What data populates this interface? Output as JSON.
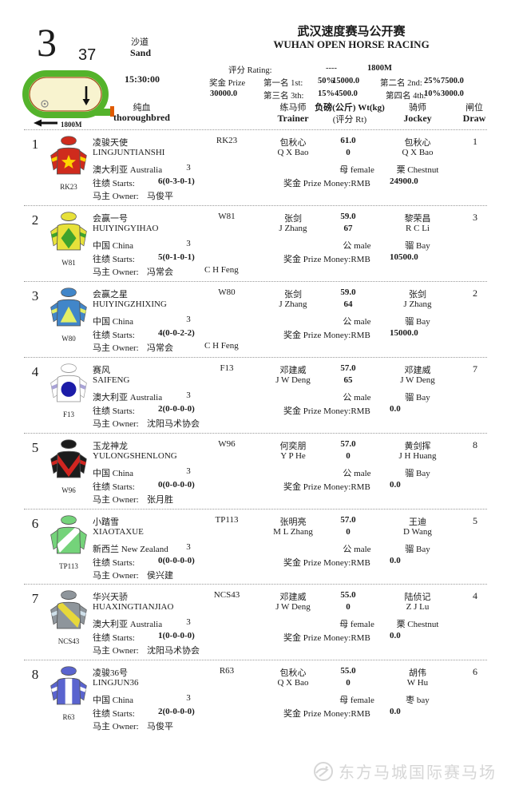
{
  "page": {
    "race_number": "3",
    "race_code": "37",
    "surface_cn": "沙道",
    "surface_en": "Sand",
    "post_time": "15:30:00",
    "breed_cn": "纯血",
    "breed_en": "thoroughbred",
    "title_cn": "武汉速度赛马公开赛",
    "title_en": "WUHAN OPEN HORSE RACING",
    "rating_label": "评分 Rating:",
    "rating_value": "----",
    "distance": "1800M",
    "track_distance": "1800M",
    "prize_label": "奖金 Prize",
    "prize_total": "30000.0",
    "prizes": [
      {
        "label": "第一名 1st:",
        "pct": "50%",
        "amount": "15000.0"
      },
      {
        "label": "第二名 2nd:",
        "pct": "25%",
        "amount": "7500.0"
      },
      {
        "label": "第三名 3th:",
        "pct": "15%",
        "amount": "4500.0"
      },
      {
        "label": "第四名 4th:",
        "pct": "10%",
        "amount": "3000.0"
      }
    ],
    "columns": {
      "trainer_cn": "练马师",
      "trainer_en": "Trainer",
      "wt_cn": "负磅(公斤) Wt(kg)",
      "wt_en": "(评分 Rt)",
      "jockey_cn": "骑师",
      "jockey_en": "Jockey",
      "draw_cn": "闸位",
      "draw_en": "Draw"
    },
    "row_labels": {
      "starts": "往绩 Starts:",
      "owner": "马主 Owner:",
      "prize": "奖金 Prize Money:RMB"
    },
    "footer": "东方马城国际赛马场",
    "colors": {
      "track_green": "#54b32b",
      "track_infield": "#f8f3cf",
      "track_rail": "#a2541f",
      "watermark_gray": "#d6d6d6"
    }
  },
  "horses": [
    {
      "num": "1",
      "code": "RK23",
      "name_cn": "凌骏天使",
      "name_en": "LINGJUNTIANSHI",
      "country": "澳大利亚 Australia",
      "age": "3",
      "starts": "6(0-3-0-1)",
      "owner_cn": "马俊平",
      "owner_en": "",
      "trainer_cn": "包秋心",
      "trainer_en": "Q X Bao",
      "wt": "61.0",
      "rating": "0",
      "sex": "母 female",
      "prize": "24900.0",
      "jockey_cn": "包秋心",
      "jockey_en": "Q X Bao",
      "coat": "栗 Chestnut",
      "draw": "1",
      "silk": {
        "cap": "#cf2b1d",
        "body": "#cf2b1d",
        "pattern": "star",
        "pattern_color": "#ffd400",
        "armband": "#ffd400"
      }
    },
    {
      "num": "2",
      "code": "W81",
      "name_cn": "会赢一号",
      "name_en": "HUIYINGYIHAO",
      "country": "中国 China",
      "age": "3",
      "starts": "5(0-1-0-1)",
      "owner_cn": "冯常会",
      "owner_en": "C H Feng",
      "trainer_cn": "张剑",
      "trainer_en": "J Zhang",
      "wt": "59.0",
      "rating": "67",
      "sex": "公 male",
      "prize": "10500.0",
      "jockey_cn": "黎荣昌",
      "jockey_en": "R C Li",
      "coat": "骝 Bay",
      "draw": "3",
      "silk": {
        "cap": "#e7e13a",
        "body": "#e7e13a",
        "pattern": "diamond",
        "pattern_color": "#3fa32c",
        "armband": "#3fa32c"
      }
    },
    {
      "num": "3",
      "code": "W80",
      "name_cn": "会赢之星",
      "name_en": "HUIYINGZHIXING",
      "country": "中国 China",
      "age": "3",
      "starts": "4(0-0-2-2)",
      "owner_cn": "冯常会",
      "owner_en": "C H Feng",
      "trainer_cn": "张剑",
      "trainer_en": "J Zhang",
      "wt": "59.0",
      "rating": "64",
      "sex": "公 male",
      "prize": "15000.0",
      "jockey_cn": "张剑",
      "jockey_en": "J Zhang",
      "coat": "骝 Bay",
      "draw": "2",
      "silk": {
        "cap": "#4186c9",
        "body": "#4186c9",
        "pattern": "triangle",
        "pattern_color": "#e3ef66",
        "armband": "#e3ef66"
      }
    },
    {
      "num": "4",
      "code": "F13",
      "name_cn": "赛风",
      "name_en": "SAIFENG",
      "country": "澳大利亚 Australia",
      "age": "3",
      "starts": "2(0-0-0-0)",
      "owner_cn": "沈阳马术协会",
      "owner_en": "",
      "trainer_cn": "邓建威",
      "trainer_en": "J W Deng",
      "wt": "57.0",
      "rating": "65",
      "sex": "公 male",
      "prize": "0.0",
      "jockey_cn": "邓建威",
      "jockey_en": "J W Deng",
      "coat": "骝 Bay",
      "draw": "7",
      "silk": {
        "cap": "#ffffff",
        "body": "#ffffff",
        "pattern": "circle",
        "pattern_color": "#1c1ca8",
        "armband": "#a9a3d6"
      }
    },
    {
      "num": "5",
      "code": "W96",
      "name_cn": "玉龙神龙",
      "name_en": "YULONGSHENLONG",
      "country": "中国 China",
      "age": "3",
      "starts": "0(0-0-0-0)",
      "owner_cn": "张月胜",
      "owner_en": "",
      "trainer_cn": "何奕朋",
      "trainer_en": "Y P He",
      "wt": "57.0",
      "rating": "0",
      "sex": "公 male",
      "prize": "0.0",
      "jockey_cn": "黄剑挥",
      "jockey_en": "J H Huang",
      "coat": "骝 Bay",
      "draw": "8",
      "silk": {
        "cap": "#1c1c1c",
        "body": "#1c1c1c",
        "pattern": "chevron",
        "pattern_color": "#d02520",
        "armband": "#d02520"
      }
    },
    {
      "num": "6",
      "code": "TP113",
      "name_cn": "小踏雪",
      "name_en": "XIAOTAXUE",
      "country": "新西兰 New Zealand",
      "age": "3",
      "starts": "0(0-0-0-0)",
      "owner_cn": "侯兴建",
      "owner_en": "",
      "trainer_cn": "张明亮",
      "trainer_en": "M L Zhang",
      "wt": "57.0",
      "rating": "0",
      "sex": "公 male",
      "prize": "0.0",
      "jockey_cn": "王迪",
      "jockey_en": "D Wang",
      "coat": "骝 Bay",
      "draw": "5",
      "silk": {
        "cap": "#74d37a",
        "body": "#74d37a",
        "pattern": "sash_f",
        "pattern_color": "#ffffff",
        "armband": ""
      }
    },
    {
      "num": "7",
      "code": "NCS43",
      "name_cn": "华兴天骄",
      "name_en": "HUAXINGTIANJIAO",
      "country": "澳大利亚 Australia",
      "age": "3",
      "starts": "1(0-0-0-0)",
      "owner_cn": "沈阳马术协会",
      "owner_en": "",
      "trainer_cn": "邓建威",
      "trainer_en": "J W Deng",
      "wt": "55.0",
      "rating": "0",
      "sex": "母 female",
      "prize": "0.0",
      "jockey_cn": "陆侦记",
      "jockey_en": "Z J Lu",
      "coat": "栗 Chestnut",
      "draw": "4",
      "silk": {
        "cap": "#8e959b",
        "body": "#8e959b",
        "pattern": "sash_b",
        "pattern_color": "#e7d83a",
        "armband": "#cfe0ea"
      }
    },
    {
      "num": "8",
      "code": "R63",
      "name_cn": "凌骏36号",
      "name_en": "LINGJUN36",
      "country": "中国 China",
      "age": "3",
      "starts": "2(0-0-0-0)",
      "owner_cn": "马俊平",
      "owner_en": "",
      "trainer_cn": "包秋心",
      "trainer_en": "Q X Bao",
      "wt": "55.0",
      "rating": "0",
      "sex": "母 female",
      "prize": "0.0",
      "jockey_cn": "胡伟",
      "jockey_en": "W Hu",
      "coat": "枣 bay",
      "draw": "6",
      "silk": {
        "cap": "#5a64cf",
        "body": "#5a64cf",
        "pattern": "stripe",
        "pattern_color": "#ffffff",
        "armband": "#ffffff"
      }
    }
  ]
}
